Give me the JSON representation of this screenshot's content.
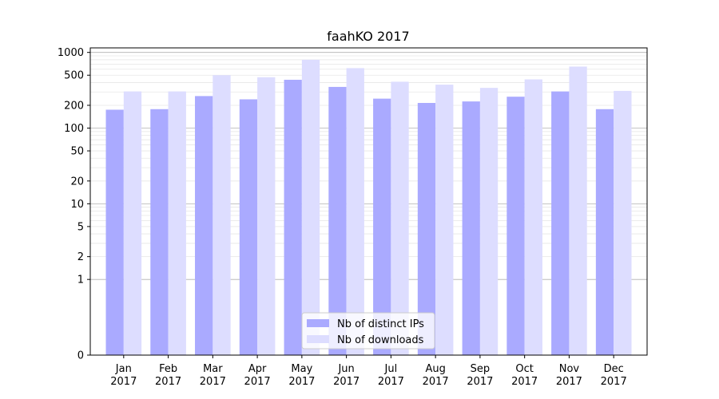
{
  "chart_data": {
    "type": "bar",
    "title": "faahKO 2017",
    "xlabel": "",
    "ylabel": "",
    "yscale": "symlog",
    "ylim": [
      0,
      1000
    ],
    "yticks": [
      "0",
      "1",
      "2",
      "5",
      "10",
      "20",
      "50",
      "100",
      "200",
      "500",
      "1000"
    ],
    "categories": [
      [
        "Jan",
        "2017"
      ],
      [
        "Feb",
        "2017"
      ],
      [
        "Mar",
        "2017"
      ],
      [
        "Apr",
        "2017"
      ],
      [
        "May",
        "2017"
      ],
      [
        "Jun",
        "2017"
      ],
      [
        "Jul",
        "2017"
      ],
      [
        "Aug",
        "2017"
      ],
      [
        "Sep",
        "2017"
      ],
      [
        "Oct",
        "2017"
      ],
      [
        "Nov",
        "2017"
      ],
      [
        "Dec",
        "2017"
      ]
    ],
    "series": [
      {
        "name": "Nb of distinct IPs",
        "color": "#aaaaff",
        "values": [
          175,
          178,
          265,
          240,
          435,
          350,
          245,
          215,
          225,
          260,
          305,
          178
        ]
      },
      {
        "name": "Nb of downloads",
        "color": "#ddddff",
        "values": [
          305,
          305,
          500,
          470,
          800,
          620,
          410,
          375,
          340,
          440,
          650,
          310
        ]
      }
    ],
    "legend_position": "bottom-center",
    "grid": true
  }
}
